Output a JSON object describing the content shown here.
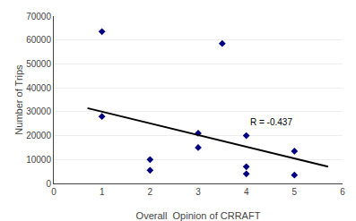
{
  "chart_data": {
    "type": "scatter",
    "xlabel": "Overall  Opinion of CRRAFT",
    "ylabel": "Number of Trips",
    "series": [
      {
        "type": "scatter",
        "marker": "diamond",
        "color": "#000080",
        "x": [
          1,
          1,
          2,
          2,
          3,
          3,
          3.5,
          4,
          4,
          4,
          5,
          5
        ],
        "values": [
          63500,
          28000,
          10000,
          5500,
          21000,
          15000,
          58500,
          20000,
          7000,
          4000,
          13500,
          3500
        ]
      },
      {
        "type": "line",
        "color": "#000000",
        "x": [
          0.7,
          5.7
        ],
        "values": [
          31500,
          7000
        ]
      }
    ],
    "annotations": [
      {
        "text": "R = -0.437",
        "x": 4.05,
        "y": 23000
      }
    ],
    "xlim": [
      0,
      6
    ],
    "ylim": [
      0,
      70000
    ],
    "xticks": [
      0,
      1,
      2,
      3,
      4,
      5,
      6
    ],
    "yticks": [
      0,
      10000,
      20000,
      30000,
      40000,
      50000,
      60000,
      70000
    ],
    "grid": "y"
  }
}
